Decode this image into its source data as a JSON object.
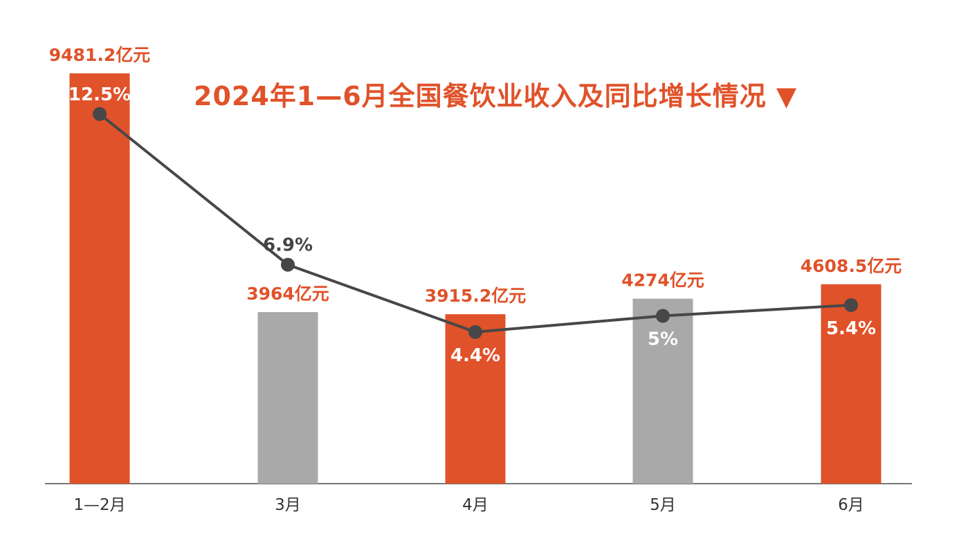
{
  "chart_data": {
    "type": "bar+line",
    "title": "2024年1—6月全国餐饮业收入及同比增长情况 ▼",
    "categories": [
      "1—2月",
      "3月",
      "4月",
      "5月",
      "6月"
    ],
    "series": [
      {
        "kind": "bar",
        "unit": "亿元",
        "values": [
          9481.2,
          3964,
          3915.2,
          4274,
          4608.5
        ],
        "labels": [
          "9481.2亿元",
          "3964亿元",
          "3915.2亿元",
          "4274亿元",
          "4608.5亿元"
        ]
      },
      {
        "kind": "line",
        "unit": "%",
        "values": [
          12.5,
          6.9,
          4.4,
          5,
          5.4
        ],
        "labels": [
          "12.5%",
          "6.9%",
          "4.4%",
          "5%",
          "5.4%"
        ]
      }
    ],
    "bar_colors": [
      "#E0522A",
      "#A9A9A9",
      "#E0522A",
      "#A9A9A9",
      "#E0522A"
    ],
    "line_color": "#474747",
    "label_color": "#E0522A",
    "grid": false,
    "legend": "none"
  }
}
